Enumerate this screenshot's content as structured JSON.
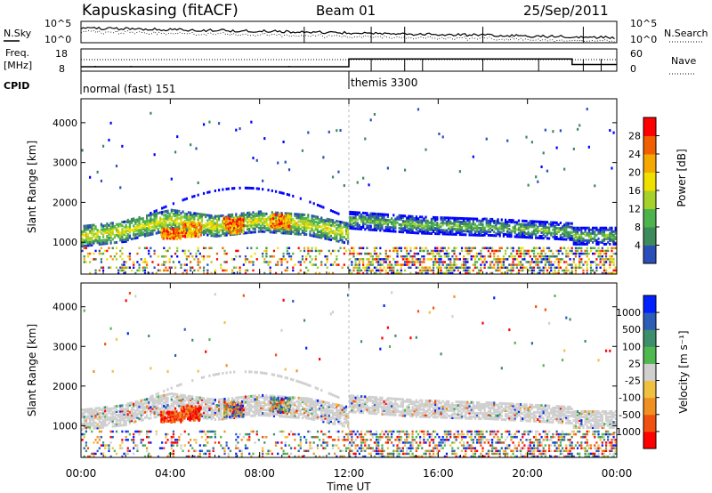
{
  "header": {
    "station": "Kapuskasing (fitACF)",
    "beam": "Beam 01",
    "date": "25/Sep/2011"
  },
  "labels": {
    "nsky": "N.Sky",
    "nsearch": "N.Search",
    "freq_line1": "Freq.",
    "freq_line2": "[MHz]",
    "nave": "Nave",
    "cpid": "CPID",
    "slant_range": "Slant Range [km]",
    "power": "Power [dB]",
    "velocity": "Velocity [m s⁻¹]",
    "time_ut": "Time UT"
  },
  "ticks": {
    "noise_left": [
      "10^5",
      "10^0"
    ],
    "noise_right": [
      "10^5",
      "10^0"
    ],
    "freq_left": [
      "18",
      "8"
    ],
    "freq_right": [
      "60",
      "0"
    ],
    "range": [
      "1000",
      "2000",
      "3000",
      "4000"
    ],
    "time": [
      "00:00",
      "04:00",
      "08:00",
      "12:00",
      "16:00",
      "20:00",
      "00:00"
    ]
  },
  "cpid_segments": [
    {
      "label": "normal (fast) 151",
      "start_hour": 0
    },
    {
      "label": "themis 3300",
      "start_hour": 12
    }
  ],
  "chart_data": [
    {
      "type": "heatmap",
      "name": "power",
      "x_range_hours": [
        0,
        24
      ],
      "ylim": [
        200,
        4600
      ],
      "yticks": [
        1000,
        2000,
        3000,
        4000
      ],
      "colorbar_ticks": [
        "28",
        "24",
        "20",
        "16",
        "12",
        "8",
        "4"
      ],
      "colorbar_colors": [
        "#0000ff",
        "#2a4fb8",
        "#3d8a5a",
        "#4db34d",
        "#a5d12a",
        "#f0e000",
        "#f5a800",
        "#f06000",
        "#ff0000"
      ]
    },
    {
      "type": "heatmap",
      "name": "velocity",
      "x_range_hours": [
        0,
        24
      ],
      "ylim": [
        200,
        4600
      ],
      "yticks": [
        1000,
        2000,
        3000,
        4000
      ],
      "colorbar_ticks": [
        "1000",
        "500",
        "100",
        "25",
        "-25",
        "-100",
        "-500",
        "-1000"
      ],
      "colorbar_colors": [
        "#0020ff",
        "#2e5db8",
        "#3c8f6a",
        "#4fb84f",
        "#cfcfcf",
        "#f0c040",
        "#f09020",
        "#f05010",
        "#ff0000"
      ]
    },
    {
      "type": "line",
      "name": "frequency",
      "x_hours": [
        0,
        12,
        12,
        22,
        22,
        24
      ],
      "y_mhz": [
        10,
        10,
        13.5,
        13.5,
        11,
        11
      ],
      "ylim": [
        8,
        18
      ]
    }
  ]
}
